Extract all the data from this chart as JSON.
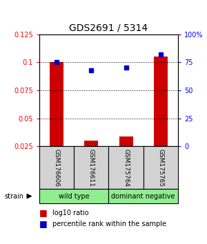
{
  "title": "GDS2691 / 5314",
  "samples": [
    "GSM176606",
    "GSM176611",
    "GSM175764",
    "GSM175765"
  ],
  "log10_ratio": [
    0.1,
    0.03,
    0.034,
    0.105
  ],
  "percentile_rank": [
    75,
    68,
    70,
    82
  ],
  "group_labels": [
    "wild type",
    "dominant negative"
  ],
  "group_sample_counts": [
    2,
    2
  ],
  "group_colors": [
    "#90EE90",
    "#90EE90"
  ],
  "ylim_left": [
    0.025,
    0.125
  ],
  "ylim_right": [
    0,
    100
  ],
  "yticks_left": [
    0.025,
    0.05,
    0.075,
    0.1,
    0.125
  ],
  "ytick_labels_left": [
    "0.025",
    "0.05",
    "0.075",
    "0.1",
    "0.125"
  ],
  "yticks_right": [
    0,
    25,
    50,
    75,
    100
  ],
  "ytick_labels_right": [
    "0",
    "25",
    "50",
    "75",
    "100%"
  ],
  "bar_color": "#cc0000",
  "scatter_color": "#0000cc",
  "grid_lines": [
    0.05,
    0.075,
    0.1
  ],
  "strain_label": "strain",
  "legend_bar": "log10 ratio",
  "legend_dot": "percentile rank within the sample",
  "bar_width": 0.4,
  "sample_box_color": "#d3d3d3"
}
